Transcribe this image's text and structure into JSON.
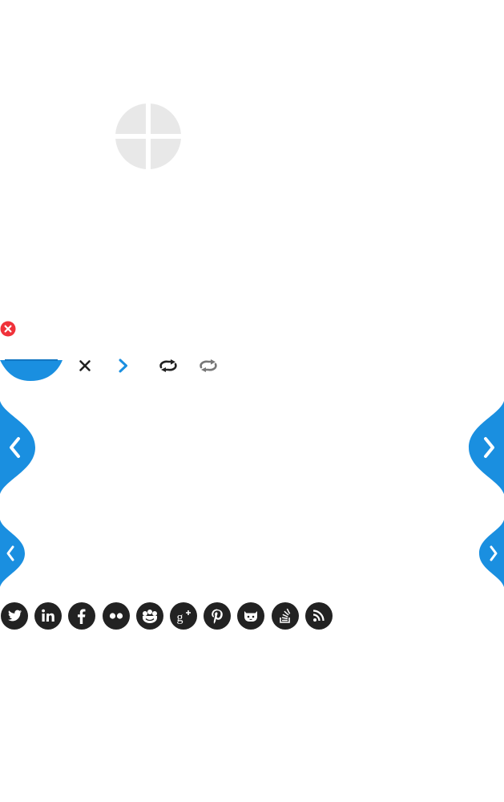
{
  "colors": {
    "accent": "#1a8fe0",
    "close_badge": "#f0323a",
    "dark_icon": "#222222",
    "placeholder": "#e8e8e8",
    "muted_icon": "#777777"
  },
  "gallery": {
    "icon": "placeholder-grid-icon"
  },
  "close_badge": {
    "icon": "close-icon"
  },
  "toolbar": {
    "tab": "toolbar-tab",
    "buttons": [
      {
        "name": "close-button",
        "icon": "close-icon"
      },
      {
        "name": "next-button",
        "icon": "chevron-right-icon"
      },
      {
        "name": "loop-button",
        "icon": "loop-icon"
      },
      {
        "name": "loop-alt-button",
        "icon": "loop-icon"
      }
    ]
  },
  "navigation": {
    "arrows": [
      {
        "name": "prev-arrow-large",
        "icon": "chevron-left-icon"
      },
      {
        "name": "next-arrow-large",
        "icon": "chevron-right-icon"
      },
      {
        "name": "prev-arrow-small",
        "icon": "chevron-left-icon"
      },
      {
        "name": "next-arrow-small",
        "icon": "chevron-right-icon"
      }
    ]
  },
  "social": {
    "items": [
      {
        "name": "twitter",
        "icon": "twitter-icon"
      },
      {
        "name": "linkedin",
        "icon": "linkedin-icon",
        "label": "in"
      },
      {
        "name": "facebook",
        "icon": "facebook-icon",
        "label": "f"
      },
      {
        "name": "flickr",
        "icon": "flickr-icon"
      },
      {
        "name": "meetup",
        "icon": "meetup-icon"
      },
      {
        "name": "google-plus",
        "icon": "google-plus-icon",
        "label": "g+"
      },
      {
        "name": "pinterest",
        "icon": "pinterest-icon",
        "label": "p"
      },
      {
        "name": "github",
        "icon": "github-icon"
      },
      {
        "name": "stackoverflow",
        "icon": "stackoverflow-icon"
      },
      {
        "name": "rss",
        "icon": "rss-icon"
      }
    ]
  }
}
